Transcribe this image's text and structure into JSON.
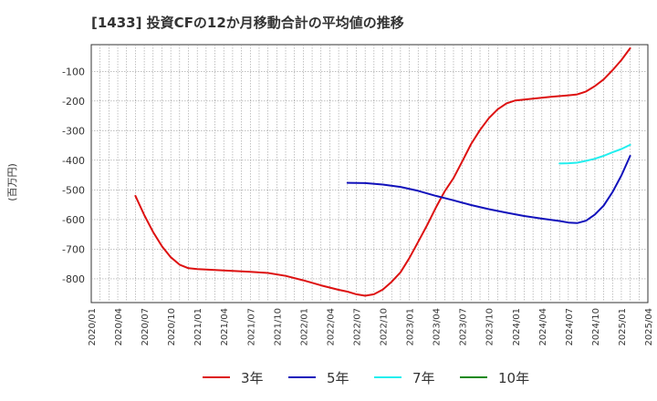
{
  "chart_data": {
    "type": "line",
    "title": "[1433]  投資CFの12か月移動合計の平均値の推移",
    "xlabel": "",
    "ylabel": "(百万円)",
    "ylim": [
      -880,
      -10
    ],
    "yticks": [
      -800,
      -700,
      -600,
      -500,
      -400,
      -300,
      -200,
      -100
    ],
    "grid": true,
    "x_start": "2020/01",
    "x_end": "2025/04",
    "xticks": [
      "2020/01",
      "2020/04",
      "2020/07",
      "2020/10",
      "2021/01",
      "2021/04",
      "2021/07",
      "2021/10",
      "2022/01",
      "2022/04",
      "2022/07",
      "2022/10",
      "2023/01",
      "2023/04",
      "2023/07",
      "2023/10",
      "2024/01",
      "2024/04",
      "2024/07",
      "2024/10",
      "2025/01",
      "2025/04"
    ],
    "legend_position": "bottom",
    "series": [
      {
        "name": "3年",
        "color": "#dd1111",
        "points": [
          [
            "2020/06",
            -520
          ],
          [
            "2020/07",
            -585
          ],
          [
            "2020/08",
            -642
          ],
          [
            "2020/09",
            -690
          ],
          [
            "2020/10",
            -727
          ],
          [
            "2020/11",
            -752
          ],
          [
            "2020/12",
            -764
          ],
          [
            "2021/01",
            -767
          ],
          [
            "2021/03",
            -770
          ],
          [
            "2021/05",
            -773
          ],
          [
            "2021/07",
            -776
          ],
          [
            "2021/09",
            -780
          ],
          [
            "2021/11",
            -790
          ],
          [
            "2022/01",
            -805
          ],
          [
            "2022/03",
            -822
          ],
          [
            "2022/05",
            -837
          ],
          [
            "2022/06",
            -843
          ],
          [
            "2022/07",
            -852
          ],
          [
            "2022/08",
            -857
          ],
          [
            "2022/09",
            -852
          ],
          [
            "2022/10",
            -836
          ],
          [
            "2022/11",
            -810
          ],
          [
            "2022/12",
            -778
          ],
          [
            "2023/01",
            -730
          ],
          [
            "2023/02",
            -675
          ],
          [
            "2023/03",
            -620
          ],
          [
            "2023/04",
            -560
          ],
          [
            "2023/05",
            -505
          ],
          [
            "2023/06",
            -460
          ],
          [
            "2023/07",
            -403
          ],
          [
            "2023/08",
            -345
          ],
          [
            "2023/09",
            -298
          ],
          [
            "2023/10",
            -258
          ],
          [
            "2023/11",
            -228
          ],
          [
            "2023/12",
            -208
          ],
          [
            "2024/01",
            -198
          ],
          [
            "2024/03",
            -192
          ],
          [
            "2024/05",
            -186
          ],
          [
            "2024/07",
            -181
          ],
          [
            "2024/08",
            -178
          ],
          [
            "2024/09",
            -168
          ],
          [
            "2024/10",
            -150
          ],
          [
            "2024/11",
            -127
          ],
          [
            "2024/12",
            -96
          ],
          [
            "2025/01",
            -62
          ],
          [
            "2025/02",
            -22
          ]
        ]
      },
      {
        "name": "5年",
        "color": "#1111bb",
        "points": [
          [
            "2022/06",
            -476
          ],
          [
            "2022/08",
            -477
          ],
          [
            "2022/10",
            -482
          ],
          [
            "2022/12",
            -490
          ],
          [
            "2023/02",
            -503
          ],
          [
            "2023/04",
            -520
          ],
          [
            "2023/06",
            -535
          ],
          [
            "2023/08",
            -551
          ],
          [
            "2023/10",
            -565
          ],
          [
            "2023/12",
            -577
          ],
          [
            "2024/02",
            -588
          ],
          [
            "2024/04",
            -597
          ],
          [
            "2024/06",
            -605
          ],
          [
            "2024/07",
            -610
          ],
          [
            "2024/08",
            -612
          ],
          [
            "2024/09",
            -604
          ],
          [
            "2024/10",
            -583
          ],
          [
            "2024/11",
            -553
          ],
          [
            "2024/12",
            -507
          ],
          [
            "2025/01",
            -451
          ],
          [
            "2025/02",
            -385
          ]
        ]
      },
      {
        "name": "7年",
        "color": "#22eeee",
        "points": [
          [
            "2024/06",
            -411
          ],
          [
            "2024/07",
            -410
          ],
          [
            "2024/08",
            -408
          ],
          [
            "2024/09",
            -402
          ],
          [
            "2024/10",
            -395
          ],
          [
            "2024/11",
            -385
          ],
          [
            "2024/12",
            -373
          ],
          [
            "2025/01",
            -362
          ],
          [
            "2025/02",
            -348
          ]
        ]
      },
      {
        "name": "10年",
        "color": "#118811",
        "points": []
      }
    ]
  }
}
